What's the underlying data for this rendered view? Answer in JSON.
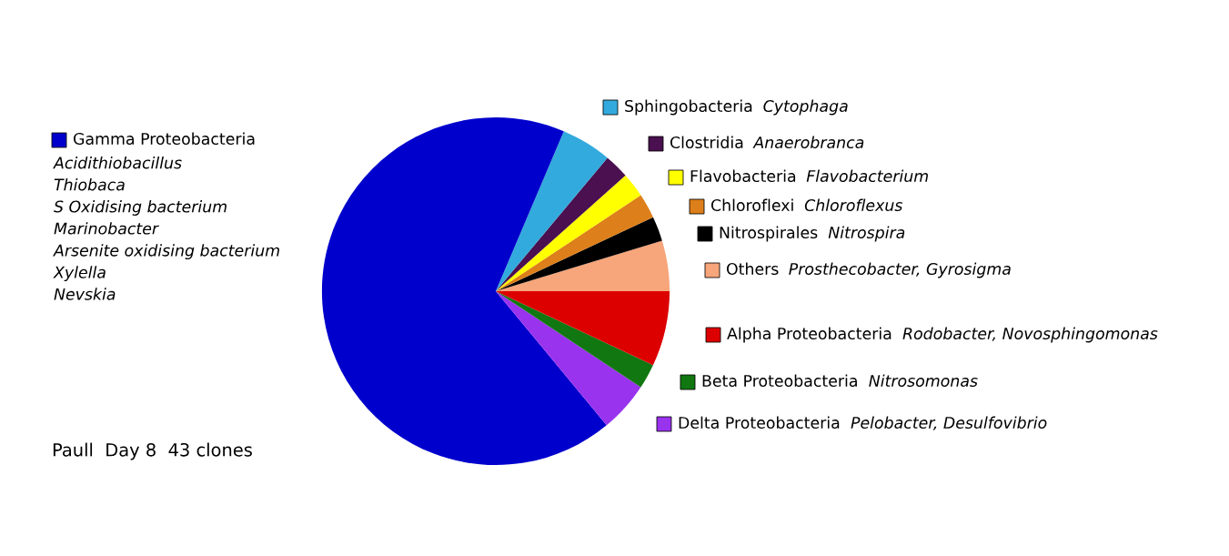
{
  "chart_data": {
    "type": "pie",
    "legend": "top left",
    "categories": [
      "Others",
      "Nitrospirales",
      "Chloroflexi",
      "Flavobacteria",
      "Clostridia",
      "Sphingobacteria",
      "Gamma Proteobacteria",
      "Delta Proteobacteria",
      "Beta Proteobacteria",
      "Alpha Proteobacteria"
    ],
    "values": [
      4.7,
      2.3,
      2.3,
      2.3,
      2.3,
      4.7,
      67.4,
      4.7,
      2.3,
      7.0
    ],
    "colors": [
      "#f7a57a",
      "#000000",
      "#dd7f1a",
      "#ffff00",
      "#4a1050",
      "#33aadd",
      "#0000cc",
      "#9933ee",
      "#117711",
      "#dd0000"
    ],
    "annotations": [
      "Prosthecobacter, Gyrosigma",
      "Nitrospira",
      "Chloroflexus",
      "Flavobacterium",
      "Anaerobranca",
      "Cytophaga",
      "Acidithiobacillus\nThiobaca\nS Oxidising bacterium\nMarinobacter\nArsenite oxidising bacterium\nXylella\nNevskia",
      "Pelobacter, Desulfovibrio",
      "Nitrosomonas",
      "Rodobacter, Novosphingomonas",
      "Paull  Day 8  43 clones"
    ]
  }
}
